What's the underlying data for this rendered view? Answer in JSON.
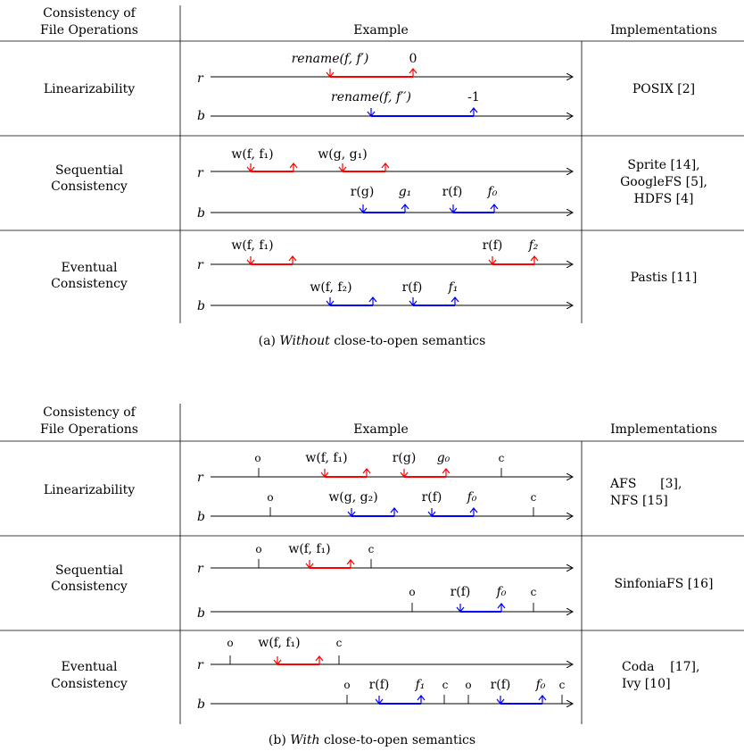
{
  "headers": {
    "col1": [
      "Consistency of",
      "File Operations"
    ],
    "col2": "Example",
    "col3": "Implementations"
  },
  "colors": {
    "red": "#ff0000",
    "blue": "#0000ff",
    "line": "#000000"
  },
  "figure_a": {
    "caption_prefix": "(a)",
    "caption_emph": "Without",
    "caption_rest": "close-to-open semantics",
    "rows": [
      {
        "name": [
          "Linearizability"
        ],
        "impl": [
          "POSIX [2]"
        ],
        "r": {
          "labels": [
            "rename(f, f′)",
            "0"
          ]
        },
        "b": {
          "labels": [
            "rename(f, f′′)",
            "-1"
          ]
        }
      },
      {
        "name": [
          "Sequential",
          "Consistency"
        ],
        "impl": [
          "Sprite [14],",
          "GoogleFS [5],",
          "HDFS [4]"
        ],
        "r": {
          "labels": [
            "w(f, f₁)",
            "w(g, g₁)"
          ]
        },
        "b": {
          "labels": [
            "r(g)",
            "g₁",
            "r(f)",
            "f₀"
          ]
        }
      },
      {
        "name": [
          "Eventual",
          "Consistency"
        ],
        "impl": [
          "Pastis [11]"
        ],
        "r": {
          "labels": [
            "w(f, f₁)",
            "r(f)",
            "f₂"
          ]
        },
        "b": {
          "labels": [
            "w(f, f₂)",
            "r(f)",
            "f₁"
          ]
        }
      }
    ]
  },
  "figure_b": {
    "caption_prefix": "(b)",
    "caption_emph": "With",
    "caption_rest": "close-to-open semantics",
    "rows": [
      {
        "name": [
          "Linearizability"
        ],
        "impl": [
          "AFS      [3],",
          "NFS [15]"
        ],
        "r": {
          "labels": [
            "o",
            "w(f, f₁)",
            "r(g)",
            "g₀",
            "c"
          ]
        },
        "b": {
          "labels": [
            "o",
            "w(g, g₂)",
            "r(f)",
            "f₀",
            "c"
          ]
        }
      },
      {
        "name": [
          "Sequential",
          "Consistency"
        ],
        "impl": [
          "SinfoniaFS [16]"
        ],
        "r": {
          "labels": [
            "o",
            "w(f, f₁)",
            "c"
          ]
        },
        "b": {
          "labels": [
            "o",
            "r(f)",
            "f₀",
            "c"
          ]
        }
      },
      {
        "name": [
          "Eventual",
          "Consistency"
        ],
        "impl": [
          "Coda    [17],",
          "Ivy [10]"
        ],
        "r": {
          "labels": [
            "o",
            "w(f, f₁)",
            "c"
          ]
        },
        "b": {
          "labels": [
            "o",
            "r(f)",
            "f₁",
            "c",
            "o",
            "r(f)",
            "f₀",
            "c"
          ]
        }
      }
    ]
  },
  "process_labels": {
    "r": "r",
    "b": "b"
  }
}
